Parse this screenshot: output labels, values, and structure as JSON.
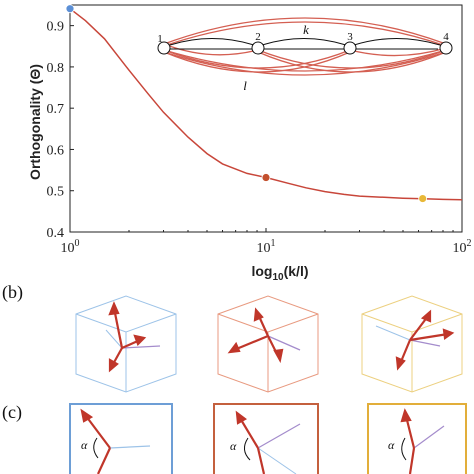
{
  "chart_data": {
    "type": "line",
    "xscale": "log",
    "xlim": [
      1,
      100
    ],
    "ylim": [
      0.4,
      0.95
    ],
    "xlabel_base": "log",
    "xlabel_sub": "10",
    "xlabel_arg": "(k/l)",
    "ylabel": "Orthogonality (Θ)",
    "x_ticks": [
      {
        "value": 1,
        "base": "10",
        "exp": "0"
      },
      {
        "value": 10,
        "base": "10",
        "exp": "1"
      },
      {
        "value": 100,
        "base": "10",
        "exp": "2"
      }
    ],
    "y_ticks": [
      "0.4",
      "0.5",
      "0.6",
      "0.7",
      "0.8",
      "0.9"
    ],
    "series": [
      {
        "color": "#c8463a",
        "x": [
          1,
          1.2,
          1.5,
          2,
          2.5,
          3,
          4,
          5,
          6,
          8,
          10,
          13,
          16,
          20,
          25,
          30,
          40,
          50,
          60,
          70,
          80,
          100
        ],
        "y": [
          0.941,
          0.912,
          0.868,
          0.792,
          0.735,
          0.69,
          0.63,
          0.59,
          0.565,
          0.542,
          0.532,
          0.518,
          0.507,
          0.498,
          0.491,
          0.487,
          0.484,
          0.482,
          0.481,
          0.48,
          0.479,
          0.478
        ]
      }
    ],
    "markers": [
      {
        "x": 1,
        "y": 0.941,
        "color": "#5b8fd6"
      },
      {
        "x": 10,
        "y": 0.532,
        "color": "#c3502e"
      },
      {
        "x": 63,
        "y": 0.481,
        "color": "#e8b838"
      }
    ]
  },
  "inset_graph": {
    "nodes": [
      {
        "label": "1"
      },
      {
        "label": "2"
      },
      {
        "label": "3"
      },
      {
        "label": "4"
      }
    ],
    "k_label": "k",
    "l_label": "l"
  },
  "panels": {
    "b_label": "(b)",
    "c_label": "(c)",
    "alpha_label": "α",
    "colors": [
      "#9dc3e8",
      "#e89a80",
      "#ecd080"
    ],
    "frame_colors": [
      "#6d9ed6",
      "#c4603e",
      "#e2ae3a"
    ],
    "arrow_color": "#c0362a",
    "line_color": "#a48ccc"
  }
}
